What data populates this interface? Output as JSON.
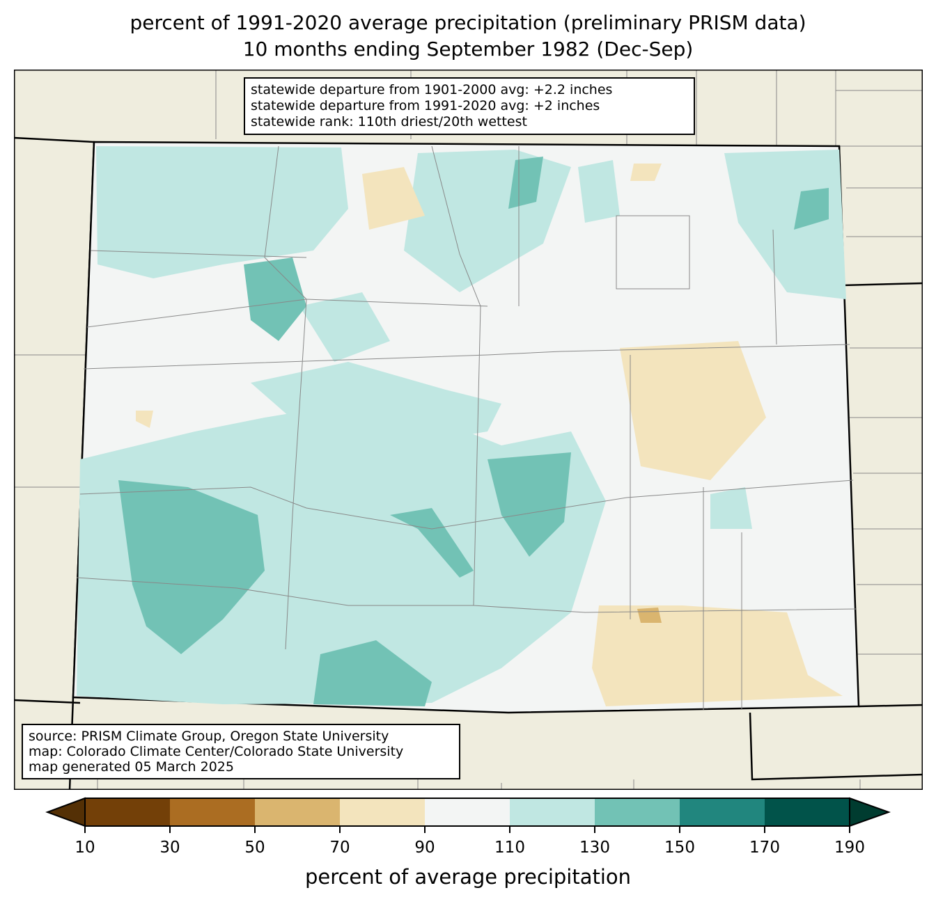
{
  "title": {
    "line1": "percent of 1991-2020 average precipitation (preliminary PRISM data)",
    "line2": "10 months ending September 1982 (Dec-Sep)"
  },
  "info_box": {
    "lines": [
      "statewide departure from 1901-2000 avg: +2.2 inches",
      "statewide departure from 1991-2020 avg: +2 inches",
      "statewide rank: 110th driest/20th wettest"
    ]
  },
  "source_box": {
    "lines": [
      "source: PRISM Climate Group, Oregon State University",
      "map: Colorado Climate Center/Colorado State University",
      "map generated 05 March 2025"
    ]
  },
  "colorbar": {
    "label": "percent of average precipitation",
    "ticks": [
      "10",
      "30",
      "50",
      "70",
      "90",
      "110",
      "130",
      "150",
      "170",
      "190"
    ],
    "under_color": "#543005",
    "over_color": "#003c30",
    "colors": [
      "#734008",
      "#ab6d22",
      "#dab56f",
      "#f3e4bd",
      "#f3f5f4",
      "#c0e7e2",
      "#72c2b5",
      "#21867e",
      "#01534a"
    ]
  },
  "map_colors": {
    "background": "#efedde"
  }
}
